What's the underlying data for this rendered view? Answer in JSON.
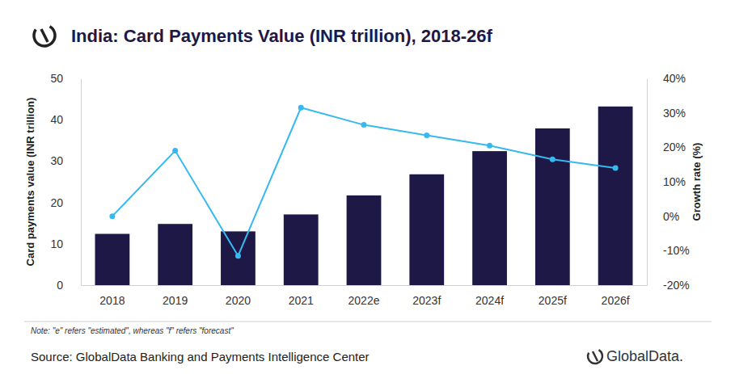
{
  "chart_data": {
    "type": "bar",
    "title": "India: Card Payments Value (INR trillion), 2018-26f",
    "y_label": "Card payments value (INR trillion)",
    "y2_label": "Growth rate (%)",
    "note": "Note: \"e\" refers \"estimated\", whereas \"f\" refers \"forecast\"",
    "source": "Source: GlobalData Banking and Payments Intelligence Center",
    "logo": "GlobalData.",
    "categories": [
      "2018",
      "2019",
      "2020",
      "2021",
      "2022e",
      "2023f",
      "2024f",
      "2025f",
      "2026f"
    ],
    "series": [
      {
        "type": "bar",
        "color": "#1e1846",
        "values": [
          12.4,
          14.8,
          13.0,
          17.1,
          21.7,
          26.8,
          32.4,
          37.9,
          43.2
        ]
      },
      {
        "type": "line",
        "axis": "y2",
        "color": "#35b9ee",
        "marker": "circle",
        "values": [
          0,
          19,
          -11.5,
          31.5,
          26.5,
          23.5,
          20.5,
          16.5,
          14
        ]
      }
    ],
    "ylim": [
      0,
      50
    ],
    "yticks": [
      0,
      10,
      20,
      30,
      40,
      50
    ],
    "y2lim": [
      -20,
      40
    ],
    "y2ticks": [
      {
        "value": -20,
        "label": "-20%"
      },
      {
        "value": -10,
        "label": "-10%"
      },
      {
        "value": 0,
        "label": "0%"
      },
      {
        "value": 10,
        "label": "10%"
      },
      {
        "value": 20,
        "label": "20%"
      },
      {
        "value": 30,
        "label": "30%"
      },
      {
        "value": 40,
        "label": "40%"
      }
    ],
    "grid": false
  }
}
